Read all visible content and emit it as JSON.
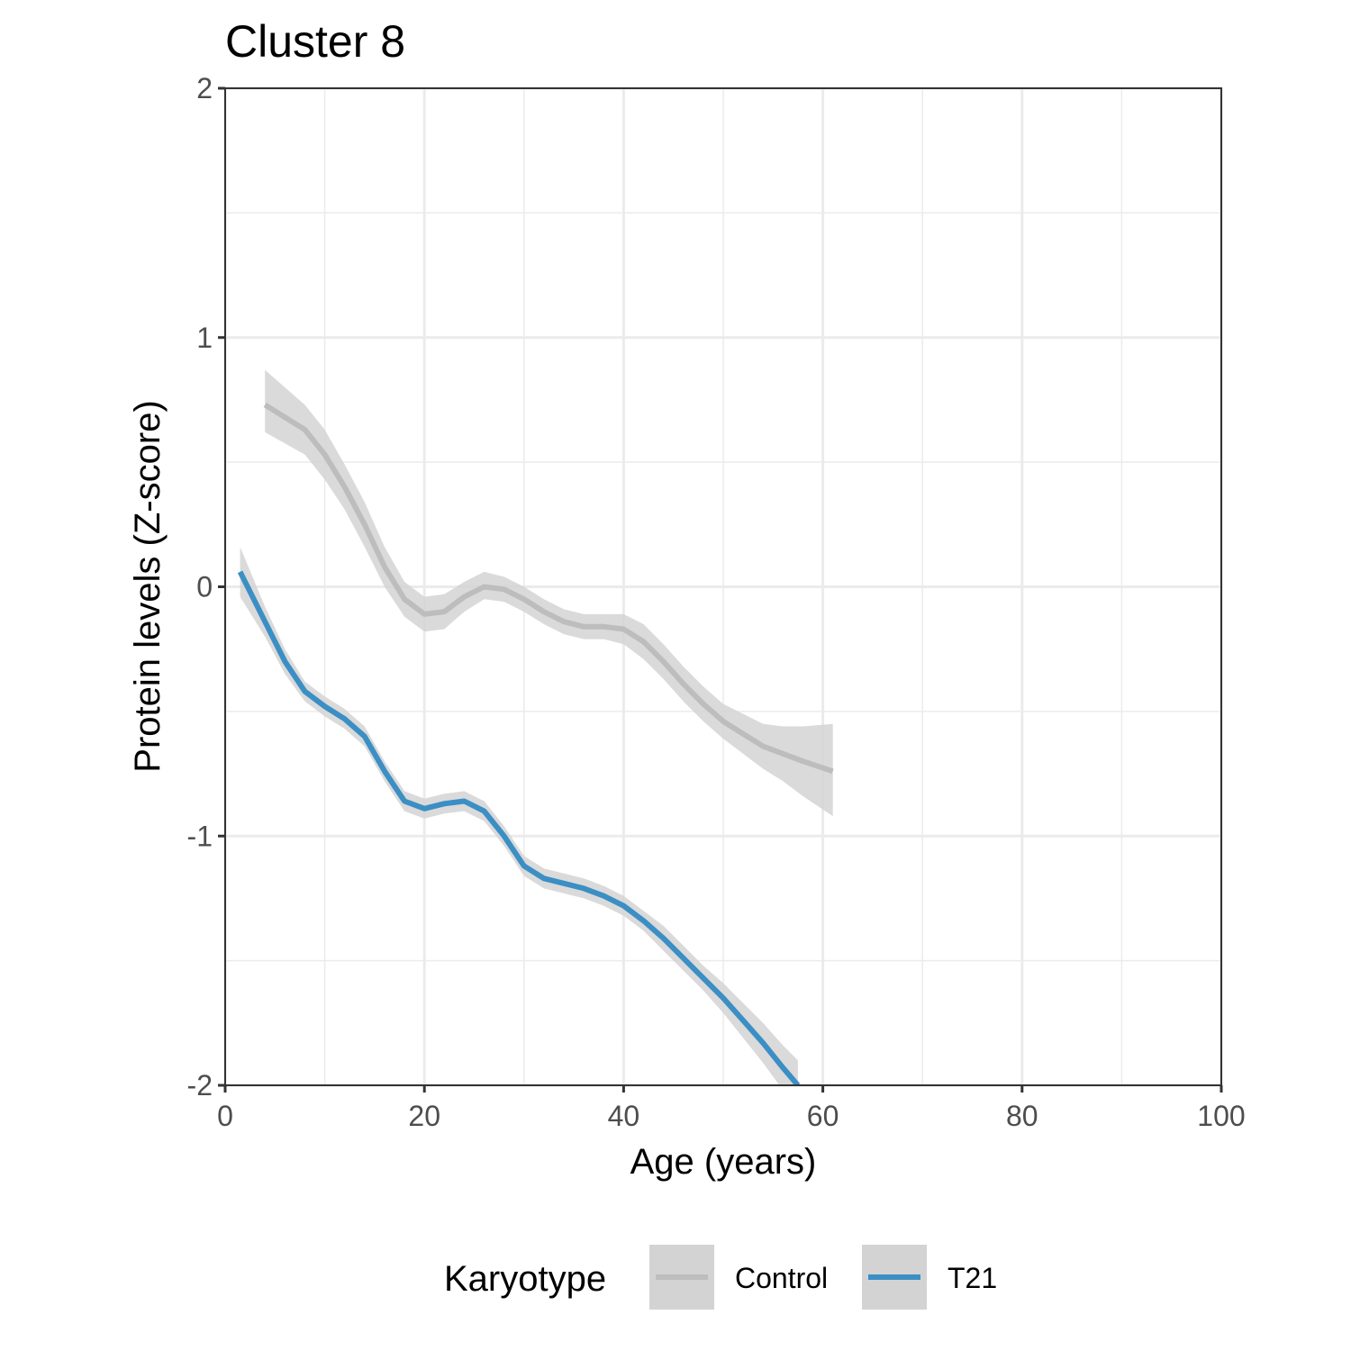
{
  "chart_data": {
    "type": "line",
    "title": "Cluster 8",
    "xlabel": "Age (years)",
    "ylabel": "Protein levels (Z-score)",
    "xlim": [
      0,
      100
    ],
    "ylim": [
      -2,
      2
    ],
    "x_ticks": [
      0,
      20,
      40,
      60,
      80,
      100
    ],
    "x_tick_labels": [
      "0",
      "20",
      "40",
      "60",
      "80",
      "100"
    ],
    "y_ticks": [
      -2,
      -1,
      0,
      1,
      2
    ],
    "y_tick_labels": [
      "-2",
      "-1",
      "0",
      "1",
      "2"
    ],
    "grid": true,
    "legend": {
      "title": "Karyotype",
      "position": "bottom"
    },
    "series": [
      {
        "name": "Control",
        "color": "#bdbdbd",
        "band_color": "#d3d3d3",
        "x": [
          4,
          8,
          10,
          12,
          14,
          16,
          18,
          20,
          22,
          24,
          26,
          28,
          30,
          32,
          34,
          36,
          38,
          40,
          42,
          44,
          46,
          48,
          50,
          52,
          54,
          56,
          58,
          61
        ],
        "y": [
          0.73,
          0.63,
          0.53,
          0.4,
          0.25,
          0.08,
          -0.05,
          -0.11,
          -0.1,
          -0.04,
          0.0,
          -0.01,
          -0.05,
          -0.1,
          -0.14,
          -0.16,
          -0.16,
          -0.17,
          -0.22,
          -0.3,
          -0.39,
          -0.47,
          -0.54,
          -0.59,
          -0.64,
          -0.67,
          -0.7,
          -0.74
        ],
        "lower": [
          0.62,
          0.53,
          0.43,
          0.31,
          0.16,
          0.0,
          -0.12,
          -0.18,
          -0.17,
          -0.1,
          -0.05,
          -0.06,
          -0.1,
          -0.15,
          -0.19,
          -0.21,
          -0.21,
          -0.23,
          -0.29,
          -0.37,
          -0.46,
          -0.54,
          -0.61,
          -0.67,
          -0.73,
          -0.78,
          -0.84,
          -0.92
        ],
        "upper": [
          0.87,
          0.73,
          0.63,
          0.49,
          0.34,
          0.16,
          0.02,
          -0.04,
          -0.03,
          0.02,
          0.06,
          0.04,
          0.0,
          -0.05,
          -0.09,
          -0.11,
          -0.11,
          -0.11,
          -0.15,
          -0.23,
          -0.32,
          -0.4,
          -0.47,
          -0.51,
          -0.55,
          -0.56,
          -0.56,
          -0.55
        ]
      },
      {
        "name": "T21",
        "color": "#3b8fc4",
        "band_color": "#d3d3d3",
        "x": [
          1.5,
          4,
          6,
          8,
          10,
          12,
          14,
          16,
          18,
          20,
          22,
          24,
          26,
          28,
          30,
          32,
          34,
          36,
          38,
          40,
          42,
          44,
          46,
          48,
          50,
          52,
          54,
          56,
          57.5
        ],
        "y": [
          0.06,
          -0.14,
          -0.3,
          -0.42,
          -0.48,
          -0.53,
          -0.6,
          -0.74,
          -0.86,
          -0.89,
          -0.87,
          -0.86,
          -0.9,
          -1.0,
          -1.12,
          -1.17,
          -1.19,
          -1.21,
          -1.24,
          -1.28,
          -1.34,
          -1.41,
          -1.49,
          -1.57,
          -1.65,
          -1.74,
          -1.83,
          -1.93,
          -2.0
        ],
        "lower": [
          -0.04,
          -0.2,
          -0.35,
          -0.46,
          -0.52,
          -0.57,
          -0.64,
          -0.78,
          -0.9,
          -0.93,
          -0.91,
          -0.9,
          -0.94,
          -1.04,
          -1.16,
          -1.21,
          -1.23,
          -1.25,
          -1.28,
          -1.32,
          -1.38,
          -1.46,
          -1.54,
          -1.62,
          -1.71,
          -1.81,
          -1.91,
          -2.02,
          -2.1
        ],
        "upper": [
          0.16,
          -0.08,
          -0.25,
          -0.38,
          -0.44,
          -0.49,
          -0.56,
          -0.7,
          -0.82,
          -0.85,
          -0.83,
          -0.82,
          -0.86,
          -0.96,
          -1.08,
          -1.13,
          -1.15,
          -1.17,
          -1.2,
          -1.24,
          -1.3,
          -1.36,
          -1.44,
          -1.52,
          -1.59,
          -1.67,
          -1.75,
          -1.84,
          -1.9
        ]
      }
    ]
  }
}
